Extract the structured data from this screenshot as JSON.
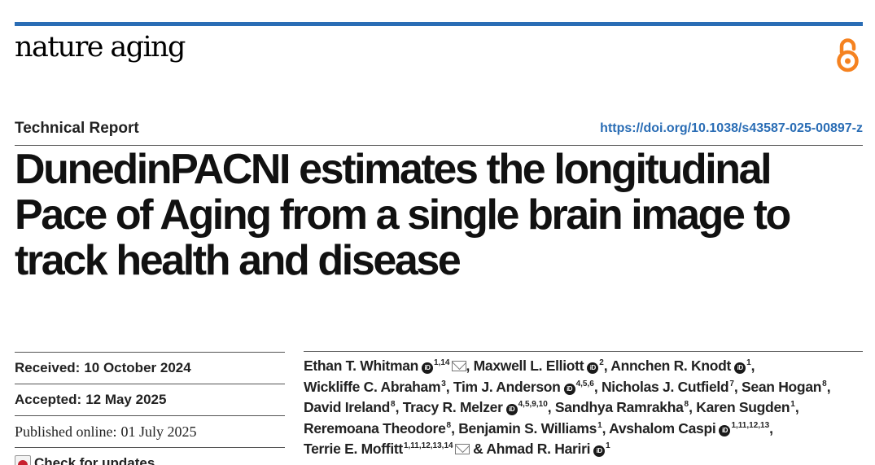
{
  "journal": {
    "name": "nature aging"
  },
  "header": {
    "article_type": "Technical Report",
    "doi": "https://doi.org/10.1038/s43587-025-00897-z"
  },
  "article": {
    "title_lines": [
      "DunedinPACNI estimates the longitudinal",
      "Pace of Aging from a single brain image to",
      "track health and disease"
    ]
  },
  "dates": {
    "received_label": "Received:",
    "received_value": "10 October 2024",
    "accepted_label": "Accepted:",
    "accepted_value": "12 May 2025",
    "published_label": "Published online:",
    "published_value": "01 July 2025",
    "check_updates": "Check for updates"
  },
  "authors": [
    {
      "name": "Ethan T. Whitman",
      "orcid": true,
      "aff": "1,14",
      "email": true,
      "sep": ","
    },
    {
      "name": "Maxwell L. Elliott",
      "orcid": true,
      "aff": "2",
      "sep": ","
    },
    {
      "name": "Annchen R. Knodt",
      "orcid": true,
      "aff": "1",
      "sep": ","
    },
    {
      "name": "Wickliffe C. Abraham",
      "aff": "3",
      "sep": ","
    },
    {
      "name": "Tim J. Anderson",
      "orcid": true,
      "aff": "4,5,6",
      "sep": ","
    },
    {
      "name": "Nicholas J. Cutfield",
      "aff": "7",
      "sep": ","
    },
    {
      "name": "Sean Hogan",
      "aff": "8",
      "sep": ","
    },
    {
      "name": "David Ireland",
      "aff": "8",
      "sep": ","
    },
    {
      "name": "Tracy R. Melzer",
      "orcid": true,
      "aff": "4,5,9,10",
      "sep": ","
    },
    {
      "name": "Sandhya Ramrakha",
      "aff": "8",
      "sep": ","
    },
    {
      "name": "Karen Sugden",
      "aff": "1",
      "sep": ","
    },
    {
      "name": "Reremoana Theodore",
      "aff": "8",
      "sep": ","
    },
    {
      "name": "Benjamin S. Williams",
      "aff": "1",
      "sep": ","
    },
    {
      "name": "Avshalom Caspi",
      "orcid": true,
      "aff": "1,11,12,13",
      "sep": ","
    },
    {
      "name": "Terrie E. Moffitt",
      "aff": "1,11,12,13,14",
      "email": true,
      "sep": " &"
    },
    {
      "name": "Ahmad R. Hariri",
      "orcid": true,
      "aff": "1",
      "sep": ""
    }
  ],
  "icons": {
    "orcid_glyph": "iD",
    "open_access": "open-access-icon",
    "email": "envelope-icon",
    "check_updates": "check-for-updates-icon"
  },
  "colors": {
    "accent": "#2a6db5",
    "open_access": "#f58220"
  }
}
